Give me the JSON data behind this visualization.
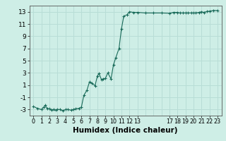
{
  "x": [
    0,
    0.5,
    1,
    1.3,
    1.5,
    1.7,
    2,
    2.3,
    2.5,
    2.8,
    3,
    3.3,
    3.7,
    4,
    4.3,
    4.7,
    5,
    5.3,
    5.7,
    6,
    6.3,
    6.7,
    7,
    7.3,
    7.7,
    8,
    8.2,
    8.5,
    8.7,
    9,
    9.3,
    9.7,
    10,
    10.3,
    10.7,
    11,
    11.3,
    11.7,
    12,
    12.5,
    13,
    14,
    15,
    16,
    17,
    17.5,
    18,
    18.3,
    18.7,
    19,
    19.3,
    19.7,
    20,
    20.3,
    20.7,
    21,
    21.3,
    21.7,
    22,
    22.5,
    23
  ],
  "y": [
    -2.5,
    -2.8,
    -3.0,
    -2.6,
    -2.3,
    -2.8,
    -2.9,
    -3.1,
    -3.0,
    -3.1,
    -3.0,
    -3.0,
    -3.2,
    -3.0,
    -3.0,
    -3.1,
    -3.0,
    -2.9,
    -2.8,
    -2.6,
    -0.7,
    0.2,
    1.5,
    1.3,
    0.9,
    2.5,
    2.9,
    1.9,
    2.0,
    2.1,
    3.0,
    2.0,
    4.3,
    5.5,
    7.0,
    10.2,
    12.3,
    12.5,
    13.0,
    12.9,
    12.9,
    12.8,
    12.8,
    12.8,
    12.75,
    12.9,
    12.9,
    12.8,
    12.8,
    12.8,
    12.8,
    12.8,
    12.8,
    12.8,
    12.9,
    13.0,
    12.9,
    13.05,
    13.1,
    13.2,
    13.2
  ],
  "line_color": "#1a6b5a",
  "marker_color": "#1a6b5a",
  "bg_color": "#ceeee6",
  "grid_major_color": "#b8ddd6",
  "grid_minor_color": "#ceeee6",
  "xlabel": "Humidex (Indice chaleur)",
  "ylim": [
    -4,
    14
  ],
  "xlim": [
    -0.5,
    23.5
  ],
  "yticks": [
    -3,
    -1,
    1,
    3,
    5,
    7,
    9,
    11,
    13
  ],
  "xtick_positions": [
    0,
    1,
    2,
    3,
    4,
    5,
    6,
    7,
    8,
    9,
    10,
    11,
    12,
    13,
    17,
    18,
    19,
    20,
    21,
    22,
    23
  ],
  "xtick_labels": [
    "0",
    "1",
    "2",
    "3",
    "4",
    "5",
    "6",
    "7",
    "8",
    "9",
    "10",
    "11",
    "12",
    "13",
    "17",
    "18",
    "19",
    "20",
    "21",
    "22",
    "23"
  ]
}
